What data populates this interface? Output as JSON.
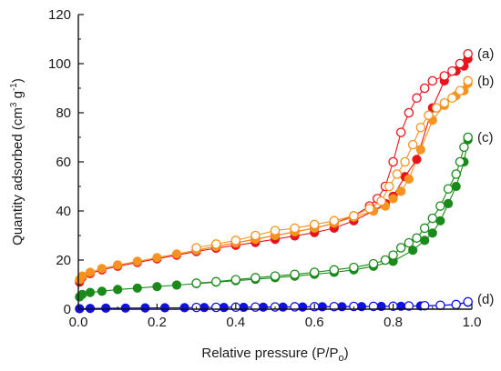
{
  "chart_data": {
    "type": "scatter",
    "xlabel": "Relative pressure (P/P",
    "xlabel_sub": "o",
    "xlabel_end": ")",
    "ylabel_main": "Quantity adsorbed (cm",
    "ylabel_sup1": "3",
    "ylabel_mid": " g",
    "ylabel_sup2": "-1",
    "ylabel_end": ")",
    "xlim": [
      0.0,
      1.0
    ],
    "ylim": [
      0,
      120
    ],
    "x_ticks": [
      "0.0",
      "0.2",
      "0.4",
      "0.6",
      "0.8",
      "1.0"
    ],
    "y_ticks": [
      "0",
      "20",
      "40",
      "60",
      "80",
      "100",
      "120"
    ],
    "grid": false,
    "series": [
      {
        "tag": "(a)",
        "color": "#e8141c",
        "adsorption": [
          [
            0.003,
            11
          ],
          [
            0.01,
            13
          ],
          [
            0.03,
            14.5
          ],
          [
            0.06,
            16
          ],
          [
            0.1,
            17.5
          ],
          [
            0.15,
            19
          ],
          [
            0.2,
            20.5
          ],
          [
            0.25,
            22
          ],
          [
            0.3,
            23.5
          ],
          [
            0.35,
            24.8
          ],
          [
            0.4,
            26
          ],
          [
            0.45,
            27.2
          ],
          [
            0.5,
            28.5
          ],
          [
            0.55,
            29.8
          ],
          [
            0.6,
            31.2
          ],
          [
            0.65,
            33
          ],
          [
            0.7,
            36
          ],
          [
            0.75,
            40
          ],
          [
            0.78,
            43
          ],
          [
            0.8,
            46
          ],
          [
            0.83,
            54
          ],
          [
            0.86,
            61
          ],
          [
            0.9,
            82
          ],
          [
            0.93,
            93
          ],
          [
            0.96,
            97
          ],
          [
            0.98,
            99
          ],
          [
            0.99,
            102
          ]
        ],
        "desorption": [
          [
            0.99,
            104
          ],
          [
            0.97,
            100
          ],
          [
            0.95,
            97
          ],
          [
            0.93,
            95
          ],
          [
            0.9,
            93
          ],
          [
            0.88,
            90
          ],
          [
            0.86,
            86
          ],
          [
            0.84,
            80
          ],
          [
            0.82,
            72
          ],
          [
            0.8,
            60
          ],
          [
            0.78,
            50
          ],
          [
            0.76,
            45
          ],
          [
            0.74,
            42
          ],
          [
            0.7,
            38
          ],
          [
            0.65,
            35
          ],
          [
            0.6,
            33
          ],
          [
            0.55,
            31.5
          ],
          [
            0.5,
            30
          ],
          [
            0.45,
            28.5
          ],
          [
            0.4,
            27
          ],
          [
            0.35,
            25.5
          ],
          [
            0.3,
            24
          ]
        ]
      },
      {
        "tag": "(b)",
        "color": "#f7931e",
        "adsorption": [
          [
            0.003,
            12
          ],
          [
            0.01,
            13.5
          ],
          [
            0.03,
            15
          ],
          [
            0.06,
            16.5
          ],
          [
            0.1,
            18
          ],
          [
            0.15,
            19.5
          ],
          [
            0.2,
            21
          ],
          [
            0.25,
            22.5
          ],
          [
            0.3,
            24
          ],
          [
            0.35,
            25.5
          ],
          [
            0.4,
            27
          ],
          [
            0.45,
            28.5
          ],
          [
            0.5,
            30
          ],
          [
            0.55,
            31.5
          ],
          [
            0.6,
            33
          ],
          [
            0.65,
            35
          ],
          [
            0.7,
            37.5
          ],
          [
            0.75,
            40
          ],
          [
            0.78,
            42
          ],
          [
            0.8,
            45
          ],
          [
            0.82,
            48
          ],
          [
            0.84,
            53
          ],
          [
            0.87,
            65
          ],
          [
            0.9,
            77
          ],
          [
            0.93,
            83
          ],
          [
            0.96,
            87
          ],
          [
            0.98,
            89
          ],
          [
            0.99,
            92
          ]
        ],
        "desorption": [
          [
            0.99,
            93
          ],
          [
            0.97,
            89
          ],
          [
            0.95,
            86
          ],
          [
            0.93,
            84
          ],
          [
            0.91,
            82
          ],
          [
            0.89,
            79
          ],
          [
            0.87,
            74
          ],
          [
            0.85,
            67
          ],
          [
            0.83,
            60
          ],
          [
            0.81,
            55
          ],
          [
            0.79,
            50
          ],
          [
            0.77,
            44
          ],
          [
            0.74,
            41
          ],
          [
            0.7,
            38
          ],
          [
            0.65,
            36
          ],
          [
            0.6,
            34.5
          ],
          [
            0.55,
            33
          ],
          [
            0.5,
            32
          ],
          [
            0.45,
            30
          ],
          [
            0.4,
            28
          ],
          [
            0.35,
            26.5
          ],
          [
            0.3,
            25
          ]
        ]
      },
      {
        "tag": "(c)",
        "color": "#1a8a1a",
        "adsorption": [
          [
            0.003,
            5
          ],
          [
            0.01,
            6
          ],
          [
            0.03,
            6.8
          ],
          [
            0.06,
            7.3
          ],
          [
            0.1,
            8
          ],
          [
            0.15,
            8.6
          ],
          [
            0.2,
            9.2
          ],
          [
            0.25,
            9.8
          ],
          [
            0.3,
            10.4
          ],
          [
            0.35,
            11
          ],
          [
            0.4,
            11.6
          ],
          [
            0.45,
            12.2
          ],
          [
            0.5,
            12.8
          ],
          [
            0.55,
            13.5
          ],
          [
            0.6,
            14.2
          ],
          [
            0.65,
            15
          ],
          [
            0.7,
            16
          ],
          [
            0.75,
            17.5
          ],
          [
            0.8,
            19.5
          ],
          [
            0.85,
            24
          ],
          [
            0.88,
            28
          ],
          [
            0.9,
            31
          ],
          [
            0.92,
            36
          ],
          [
            0.94,
            43
          ],
          [
            0.96,
            50
          ],
          [
            0.98,
            60
          ],
          [
            0.99,
            69
          ]
        ],
        "desorption": [
          [
            0.99,
            70
          ],
          [
            0.98,
            66
          ],
          [
            0.97,
            60
          ],
          [
            0.96,
            55
          ],
          [
            0.94,
            49
          ],
          [
            0.92,
            42
          ],
          [
            0.9,
            37
          ],
          [
            0.88,
            33
          ],
          [
            0.86,
            29
          ],
          [
            0.84,
            27
          ],
          [
            0.82,
            25
          ],
          [
            0.8,
            22
          ],
          [
            0.78,
            20
          ],
          [
            0.75,
            18.5
          ],
          [
            0.7,
            17
          ],
          [
            0.65,
            16
          ],
          [
            0.6,
            15
          ],
          [
            0.55,
            14.2
          ],
          [
            0.5,
            13.5
          ],
          [
            0.45,
            12.8
          ],
          [
            0.4,
            12
          ],
          [
            0.35,
            11.2
          ],
          [
            0.3,
            10.6
          ]
        ]
      },
      {
        "tag": "(d)",
        "color": "#1010e0",
        "adsorption": [
          [
            0.003,
            0.2
          ],
          [
            0.03,
            0.3
          ],
          [
            0.07,
            0.4
          ],
          [
            0.12,
            0.45
          ],
          [
            0.17,
            0.5
          ],
          [
            0.22,
            0.55
          ],
          [
            0.27,
            0.6
          ],
          [
            0.32,
            0.65
          ],
          [
            0.37,
            0.7
          ],
          [
            0.42,
            0.75
          ],
          [
            0.47,
            0.8
          ],
          [
            0.52,
            0.85
          ],
          [
            0.57,
            0.9
          ],
          [
            0.62,
            0.95
          ],
          [
            0.67,
            1.0
          ],
          [
            0.72,
            1.05
          ],
          [
            0.77,
            1.1
          ],
          [
            0.82,
            1.2
          ],
          [
            0.87,
            1.3
          ],
          [
            0.92,
            1.5
          ],
          [
            0.96,
            1.8
          ],
          [
            0.99,
            2.8
          ]
        ],
        "desorption": [
          [
            0.99,
            3
          ],
          [
            0.96,
            1.9
          ],
          [
            0.92,
            1.6
          ],
          [
            0.88,
            1.4
          ],
          [
            0.84,
            1.3
          ],
          [
            0.8,
            1.2
          ],
          [
            0.75,
            1.15
          ],
          [
            0.7,
            1.1
          ],
          [
            0.65,
            1.05
          ],
          [
            0.6,
            1.0
          ],
          [
            0.55,
            0.95
          ],
          [
            0.5,
            0.9
          ],
          [
            0.45,
            0.85
          ],
          [
            0.4,
            0.8
          ],
          [
            0.35,
            0.75
          ],
          [
            0.3,
            0.7
          ]
        ]
      }
    ]
  }
}
